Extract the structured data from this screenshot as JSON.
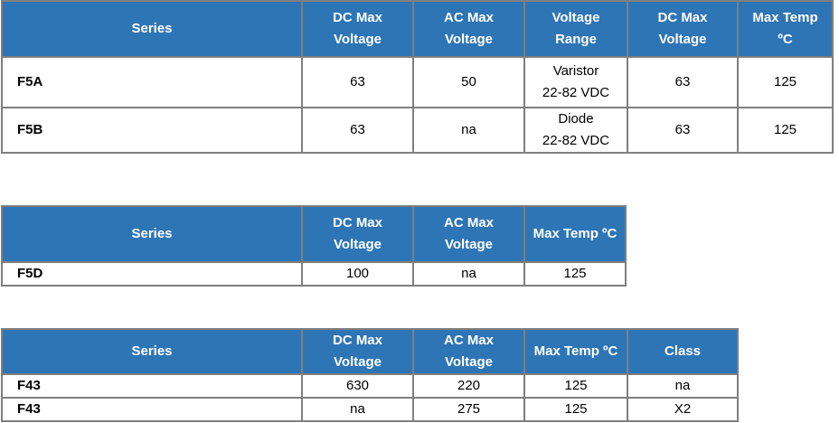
{
  "table1": {
    "headers": [
      [
        "Series"
      ],
      [
        "DC Max",
        "Voltage"
      ],
      [
        "AC Max",
        "Voltage"
      ],
      [
        "Voltage",
        "Range"
      ],
      [
        "DC Max",
        "Voltage"
      ],
      [
        "Max Temp",
        "ºC"
      ]
    ],
    "rows": [
      [
        [
          "F5A"
        ],
        [
          "63"
        ],
        [
          "50"
        ],
        [
          "Varistor",
          "22-82 VDC"
        ],
        [
          "63"
        ],
        [
          "125"
        ]
      ],
      [
        [
          "F5B"
        ],
        [
          "63"
        ],
        [
          "na"
        ],
        [
          "Diode",
          "22-82 VDC"
        ],
        [
          "63"
        ],
        [
          "125"
        ]
      ]
    ]
  },
  "table2": {
    "headers": [
      [
        "Series"
      ],
      [
        "DC Max",
        "Voltage"
      ],
      [
        "AC Max",
        "Voltage"
      ],
      [
        "Max Temp ºC"
      ]
    ],
    "rows": [
      [
        [
          "F5D"
        ],
        [
          "100"
        ],
        [
          "na"
        ],
        [
          "125"
        ]
      ]
    ]
  },
  "table3": {
    "headers": [
      [
        "Series"
      ],
      [
        "DC Max",
        "Voltage"
      ],
      [
        "AC Max",
        "Voltage"
      ],
      [
        "Max Temp ºC"
      ],
      [
        "Class"
      ]
    ],
    "rows": [
      [
        [
          "F43"
        ],
        [
          "630"
        ],
        [
          "220"
        ],
        [
          "125"
        ],
        [
          "na"
        ]
      ],
      [
        [
          "F43"
        ],
        [
          "na"
        ],
        [
          "275"
        ],
        [
          "125"
        ],
        [
          "X2"
        ]
      ]
    ]
  }
}
